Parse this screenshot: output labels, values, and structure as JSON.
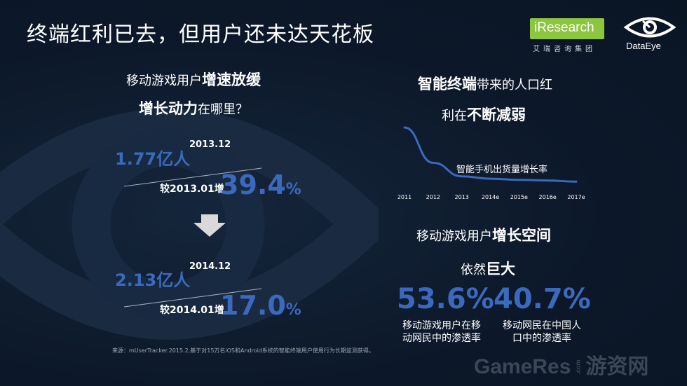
{
  "header": {
    "title": "终端红利已去，但用户还未达天花板"
  },
  "logos": {
    "iresearch": {
      "name": "iResearch",
      "subtitle": "艾瑞咨询集团"
    },
    "dataeye": {
      "name": "DataEye"
    }
  },
  "left": {
    "heading_line1_plain": "移动游戏用户",
    "heading_line1_bold": "增速放缓",
    "heading_line2_bold": "增长动力",
    "heading_line2_plain": "在哪里？",
    "block1": {
      "users": "1.77亿人",
      "date": "2013.12",
      "compare_label": "较2013.01增",
      "growth_number": "39.4",
      "growth_unit": "%"
    },
    "block2": {
      "users": "2.13亿人",
      "date": "2014.12",
      "compare_label": "较2014.01增",
      "growth_number": "17.0",
      "growth_unit": "%"
    },
    "arrow_icon": "arrow-down-icon"
  },
  "right": {
    "heading1_bold": "智能终端",
    "heading1_plain": "带来的人口红",
    "heading2_plain": "利在",
    "heading2_bold": "不断减弱",
    "heading3_plain": "移动游戏用户",
    "heading3_bold": "增长空间",
    "heading4_plain": "依然",
    "heading4_bold": "巨大",
    "stat1": {
      "value": "53.6%",
      "caption": "移动游戏用户在移动网民中的渗透率"
    },
    "stat2": {
      "value": "40.7%",
      "caption": "移动网民在中国人口中的渗透率"
    }
  },
  "chart_data": {
    "type": "line",
    "series": [
      {
        "name": "智能手机出货量增长率",
        "values": [
          100,
          40,
          17,
          13,
          11,
          10,
          8
        ]
      }
    ],
    "categories": [
      "2011",
      "2012",
      "2013",
      "2014e",
      "2015e",
      "2016e",
      "2017e"
    ],
    "ylim": [
      0,
      100
    ],
    "grid": false,
    "color": "#3b69bd"
  },
  "footer": {
    "source": "来源：mUserTracker.2015.2,基于对15万名iOS和Android系统的智能终端用户使用行为长期监测获得。",
    "watermark_main": "GameRes",
    "watermark_com": ".com",
    "watermark_cn": "游资网"
  },
  "colors": {
    "background": "#0d1a2c",
    "accent_blue": "#3b69bd",
    "iresearch_green": "#8cc63f"
  }
}
